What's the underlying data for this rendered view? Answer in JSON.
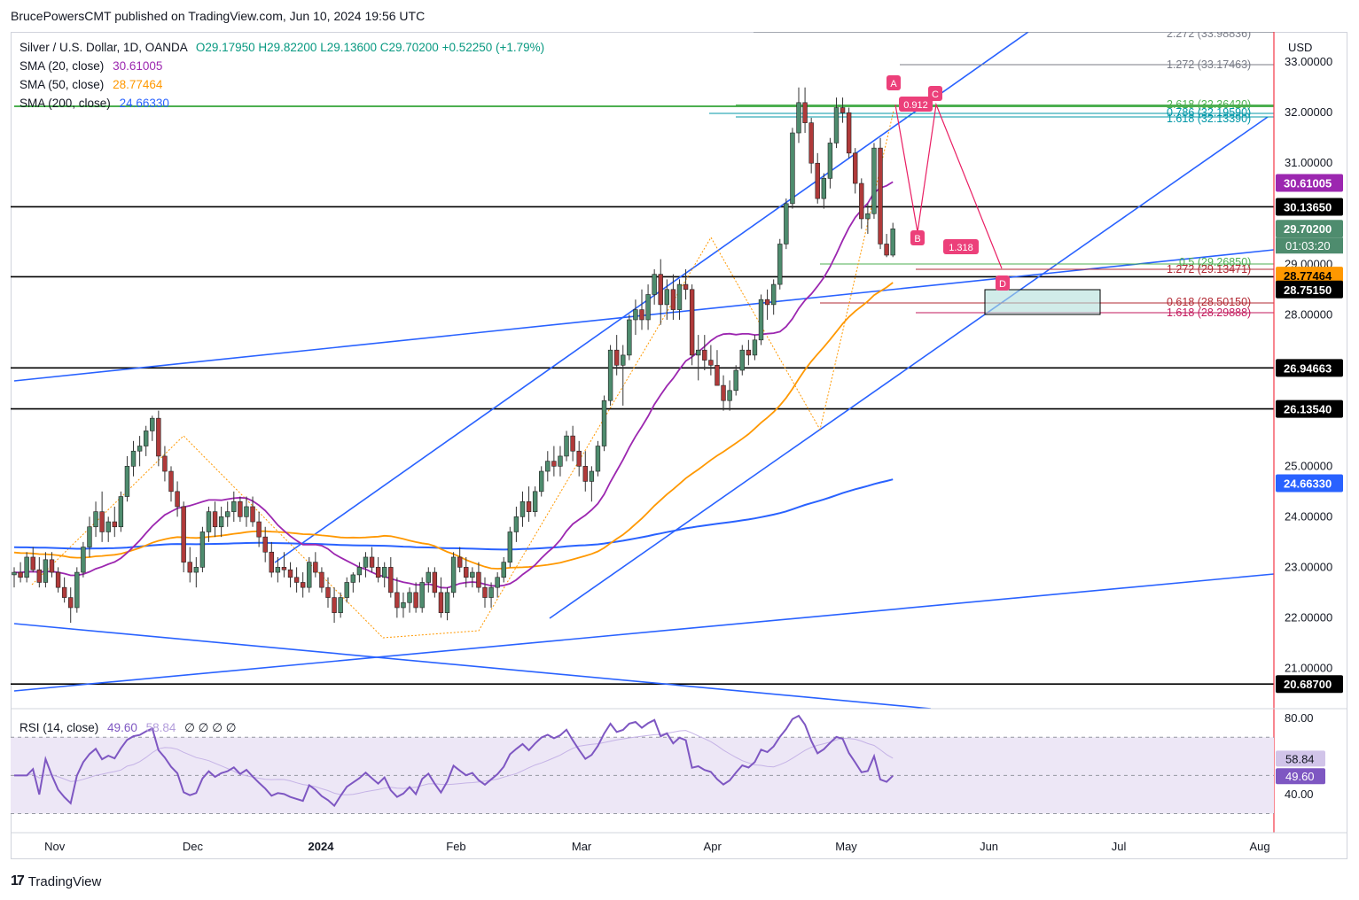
{
  "header": {
    "text": "BrucePowersCMT published on TradingView.com, Jun 10, 2024 19:56 UTC"
  },
  "legend": {
    "main": {
      "symbol": "Silver / U.S. Dollar, 1D, OANDA",
      "ohlc": "O29.17950  H29.82200  L29.13600  C29.70200  +0.52250 (+1.79%)"
    },
    "sma20": {
      "label": "SMA (20, close)",
      "value": "30.61005",
      "color": "#9c27b0"
    },
    "sma50": {
      "label": "SMA (50, close)",
      "value": "28.77464",
      "color": "#ff9800"
    },
    "sma200": {
      "label": "SMA (200, close)",
      "value": "24.66330",
      "color": "#2962ff"
    },
    "rsi": {
      "label": "RSI (14, close)",
      "value": "49.60",
      "value2": "58.84",
      "extra": "∅  ∅  ∅  ∅"
    }
  },
  "currency": "USD",
  "footer": {
    "brand": "TradingView",
    "logo": "tradingview-logo-icon"
  },
  "colors": {
    "up": "#089981",
    "down": "#f23645",
    "upFill": "#4e8c6e",
    "downFill": "#b03a3a",
    "channel": "#2962ff",
    "rsiLine": "#7e57c2",
    "rsiBand": "#ede7f6"
  },
  "chart_data": {
    "type": "candlestick",
    "instrument": "Silver / U.S. Dollar",
    "interval": "1D",
    "ylim": [
      20.2,
      33.6
    ],
    "price_ticks": [
      "33.00000",
      "32.00000",
      "31.00000",
      "29.00000",
      "28.00000",
      "25.00000",
      "24.00000",
      "23.00000",
      "22.00000",
      "21.00000"
    ],
    "time_labels": [
      {
        "label": "Nov",
        "bar": 2
      },
      {
        "label": "Dec",
        "bar": 24
      },
      {
        "label": "2024",
        "bar": 44,
        "bold": true
      },
      {
        "label": "Feb",
        "bar": 66
      },
      {
        "label": "Mar",
        "bar": 86
      },
      {
        "label": "Apr",
        "bar": 107
      },
      {
        "label": "May",
        "bar": 128
      },
      {
        "label": "Jun",
        "bar": 151
      },
      {
        "label": "Jul",
        "bar": 172
      },
      {
        "label": "Aug",
        "bar": 194
      }
    ],
    "ohlc": [
      [
        22.85,
        23.0,
        22.6,
        22.9
      ],
      [
        22.9,
        23.1,
        22.7,
        22.8
      ],
      [
        22.8,
        23.3,
        22.7,
        23.2
      ],
      [
        23.2,
        23.4,
        22.9,
        22.95
      ],
      [
        22.95,
        23.2,
        22.6,
        22.7
      ],
      [
        22.7,
        23.3,
        22.6,
        23.15
      ],
      [
        23.15,
        23.3,
        22.8,
        22.9
      ],
      [
        22.9,
        23.0,
        22.5,
        22.6
      ],
      [
        22.6,
        22.8,
        22.3,
        22.4
      ],
      [
        22.4,
        22.6,
        21.9,
        22.2
      ],
      [
        22.2,
        23.0,
        22.1,
        22.9
      ],
      [
        22.9,
        23.5,
        22.8,
        23.4
      ],
      [
        23.4,
        24.0,
        23.2,
        23.8
      ],
      [
        23.8,
        24.3,
        23.6,
        24.1
      ],
      [
        24.1,
        24.5,
        23.5,
        23.7
      ],
      [
        23.7,
        24.0,
        23.5,
        23.9
      ],
      [
        23.9,
        24.2,
        23.6,
        23.8
      ],
      [
        23.8,
        24.5,
        23.7,
        24.4
      ],
      [
        24.4,
        25.2,
        24.3,
        25.0
      ],
      [
        25.0,
        25.5,
        24.8,
        25.3
      ],
      [
        25.3,
        25.6,
        25.0,
        25.4
      ],
      [
        25.4,
        25.8,
        25.2,
        25.7
      ],
      [
        25.7,
        26.0,
        25.5,
        25.95
      ],
      [
        25.95,
        26.1,
        25.0,
        25.2
      ],
      [
        25.2,
        25.4,
        24.7,
        24.9
      ],
      [
        24.9,
        25.0,
        24.3,
        24.5
      ],
      [
        24.5,
        24.7,
        24.0,
        24.2
      ],
      [
        24.2,
        24.3,
        22.9,
        23.1
      ],
      [
        23.1,
        23.4,
        22.7,
        22.9
      ],
      [
        22.9,
        23.2,
        22.6,
        23.0
      ],
      [
        23.0,
        23.8,
        22.9,
        23.7
      ],
      [
        23.7,
        24.2,
        23.5,
        24.1
      ],
      [
        24.1,
        24.3,
        23.6,
        23.8
      ],
      [
        23.8,
        24.2,
        23.6,
        24.0
      ],
      [
        24.0,
        24.3,
        23.8,
        24.1
      ],
      [
        24.1,
        24.5,
        23.9,
        24.3
      ],
      [
        24.3,
        24.4,
        23.9,
        24.0
      ],
      [
        24.0,
        24.4,
        23.8,
        24.2
      ],
      [
        24.2,
        24.4,
        23.8,
        23.9
      ],
      [
        23.9,
        24.1,
        23.4,
        23.6
      ],
      [
        23.6,
        23.8,
        23.1,
        23.3
      ],
      [
        23.3,
        23.5,
        22.8,
        22.9
      ],
      [
        22.9,
        23.2,
        22.7,
        23.0
      ],
      [
        23.0,
        23.3,
        22.8,
        22.95
      ],
      [
        22.95,
        23.1,
        22.6,
        22.8
      ],
      [
        22.8,
        23.0,
        22.5,
        22.7
      ],
      [
        22.7,
        22.9,
        22.4,
        22.6
      ],
      [
        22.6,
        23.2,
        22.5,
        23.1
      ],
      [
        23.1,
        23.3,
        22.8,
        22.9
      ],
      [
        22.9,
        23.0,
        22.5,
        22.6
      ],
      [
        22.6,
        22.8,
        22.2,
        22.4
      ],
      [
        22.4,
        22.6,
        21.9,
        22.1
      ],
      [
        22.1,
        22.5,
        22.0,
        22.4
      ],
      [
        22.4,
        22.8,
        22.3,
        22.7
      ],
      [
        22.7,
        22.9,
        22.5,
        22.85
      ],
      [
        22.85,
        23.1,
        22.7,
        23.0
      ],
      [
        23.0,
        23.3,
        22.8,
        23.2
      ],
      [
        23.2,
        23.4,
        22.9,
        23.0
      ],
      [
        23.0,
        23.2,
        22.7,
        22.8
      ],
      [
        22.8,
        23.1,
        22.6,
        23.0
      ],
      [
        23.0,
        23.2,
        22.4,
        22.5
      ],
      [
        22.5,
        22.8,
        22.0,
        22.2
      ],
      [
        22.2,
        22.5,
        22.0,
        22.3
      ],
      [
        22.3,
        22.6,
        22.1,
        22.5
      ],
      [
        22.5,
        22.7,
        22.1,
        22.2
      ],
      [
        22.2,
        22.8,
        22.1,
        22.7
      ],
      [
        22.7,
        23.0,
        22.5,
        22.9
      ],
      [
        22.9,
        23.0,
        22.4,
        22.5
      ],
      [
        22.5,
        22.8,
        22.0,
        22.1
      ],
      [
        22.1,
        22.6,
        21.95,
        22.5
      ],
      [
        22.5,
        23.3,
        22.4,
        23.2
      ],
      [
        23.2,
        23.4,
        22.9,
        23.0
      ],
      [
        23.0,
        23.2,
        22.6,
        22.8
      ],
      [
        22.8,
        23.0,
        22.6,
        22.9
      ],
      [
        22.9,
        23.1,
        22.5,
        22.6
      ],
      [
        22.6,
        22.8,
        22.2,
        22.4
      ],
      [
        22.4,
        22.7,
        22.2,
        22.6
      ],
      [
        22.6,
        22.9,
        22.4,
        22.8
      ],
      [
        22.8,
        23.2,
        22.7,
        23.1
      ],
      [
        23.1,
        23.8,
        23.0,
        23.7
      ],
      [
        23.7,
        24.2,
        23.5,
        24.0
      ],
      [
        24.0,
        24.5,
        23.8,
        24.3
      ],
      [
        24.3,
        24.6,
        23.9,
        24.1
      ],
      [
        24.1,
        24.6,
        24.0,
        24.5
      ],
      [
        24.5,
        25.0,
        24.4,
        24.9
      ],
      [
        24.9,
        25.3,
        24.7,
        25.1
      ],
      [
        25.1,
        25.4,
        24.8,
        25.0
      ],
      [
        25.0,
        25.4,
        24.8,
        25.2
      ],
      [
        25.2,
        25.7,
        25.1,
        25.6
      ],
      [
        25.6,
        25.8,
        25.1,
        25.3
      ],
      [
        25.3,
        25.5,
        24.8,
        25.0
      ],
      [
        25.0,
        25.3,
        24.5,
        24.7
      ],
      [
        24.7,
        25.0,
        24.3,
        24.9
      ],
      [
        24.9,
        25.5,
        24.8,
        25.4
      ],
      [
        25.4,
        26.4,
        25.3,
        26.3
      ],
      [
        26.3,
        27.4,
        26.2,
        27.3
      ],
      [
        27.3,
        27.6,
        26.8,
        27.0
      ],
      [
        27.0,
        27.4,
        26.2,
        27.2
      ],
      [
        27.2,
        28.0,
        27.1,
        27.9
      ],
      [
        27.9,
        28.3,
        27.6,
        28.1
      ],
      [
        28.1,
        28.5,
        27.7,
        27.9
      ],
      [
        27.9,
        28.6,
        27.7,
        28.4
      ],
      [
        28.4,
        28.9,
        28.2,
        28.8
      ],
      [
        28.8,
        29.1,
        27.8,
        28.2
      ],
      [
        28.2,
        28.7,
        27.9,
        28.5
      ],
      [
        28.5,
        28.8,
        27.9,
        28.1
      ],
      [
        28.1,
        28.7,
        27.9,
        28.6
      ],
      [
        28.6,
        28.9,
        28.3,
        28.5
      ],
      [
        28.5,
        28.6,
        27.0,
        27.2
      ],
      [
        27.2,
        27.6,
        26.7,
        27.3
      ],
      [
        27.3,
        27.6,
        26.9,
        27.1
      ],
      [
        27.1,
        27.4,
        26.8,
        27.0
      ],
      [
        27.0,
        27.3,
        26.6,
        26.6
      ],
      [
        26.6,
        26.8,
        26.1,
        26.3
      ],
      [
        26.3,
        26.7,
        26.1,
        26.5
      ],
      [
        26.5,
        27.0,
        26.4,
        26.9
      ],
      [
        26.9,
        27.4,
        26.8,
        27.3
      ],
      [
        27.3,
        27.5,
        27.0,
        27.2
      ],
      [
        27.2,
        27.6,
        27.1,
        27.5
      ],
      [
        27.5,
        28.4,
        27.4,
        28.3
      ],
      [
        28.3,
        28.5,
        27.9,
        28.2
      ],
      [
        28.2,
        28.7,
        28.0,
        28.6
      ],
      [
        28.6,
        29.5,
        28.5,
        29.4
      ],
      [
        29.4,
        30.3,
        29.3,
        30.2
      ],
      [
        30.2,
        31.7,
        30.1,
        31.6
      ],
      [
        31.6,
        32.5,
        31.4,
        32.2
      ],
      [
        32.2,
        32.5,
        31.6,
        31.8
      ],
      [
        31.8,
        31.9,
        30.8,
        31.0
      ],
      [
        31.0,
        31.2,
        30.2,
        30.3
      ],
      [
        30.3,
        30.8,
        30.1,
        30.7
      ],
      [
        30.7,
        31.5,
        30.5,
        31.4
      ],
      [
        31.4,
        32.3,
        31.3,
        32.1
      ],
      [
        32.1,
        32.3,
        31.8,
        32.0
      ],
      [
        32.0,
        32.1,
        31.1,
        31.2
      ],
      [
        31.2,
        31.3,
        30.4,
        30.6
      ],
      [
        30.6,
        30.7,
        29.7,
        29.9
      ],
      [
        29.9,
        30.2,
        29.6,
        30.0
      ],
      [
        30.0,
        31.4,
        29.9,
        31.3
      ],
      [
        31.3,
        31.5,
        29.3,
        29.4
      ],
      [
        29.4,
        29.6,
        29.14,
        29.18
      ],
      [
        29.18,
        29.82,
        29.14,
        29.7
      ]
    ]
  }
}
